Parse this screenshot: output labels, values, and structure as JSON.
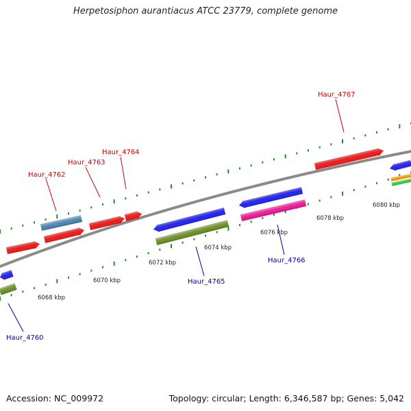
{
  "title": "Herpetosiphon aurantiacus ATCC 23779, complete genome",
  "footer": {
    "accession": "Accession: NC_009972",
    "summary": "Topology: circular; Length: 6,346,587 bp; Genes: 5,042"
  },
  "scale_labels": [
    "6068 kbp",
    "6070 kbp",
    "6072 kbp",
    "6074 kbp",
    "6076 kbp",
    "6078 kbp",
    "6080 kbp"
  ],
  "gene_labels": {
    "top": [
      "Haur_4762",
      "Haur_4763",
      "Haur_4764",
      "Haur_4767"
    ],
    "bottom": [
      "Haur_4760",
      "Haur_4765",
      "Haur_4766"
    ]
  },
  "colors": {
    "backbone": "#8a8a8a",
    "forward_cds": "#ee1111",
    "forward_rna": "#4682b4",
    "reverse_cds": "#1a1aee",
    "reverse_feature": "#6b8e23",
    "reverse_pink": "#ee1493",
    "orange": "#ff9900",
    "light_green": "#33cc33",
    "tick": "#228b22",
    "label_top": "#cc0000",
    "label_bottom": "#000099"
  }
}
